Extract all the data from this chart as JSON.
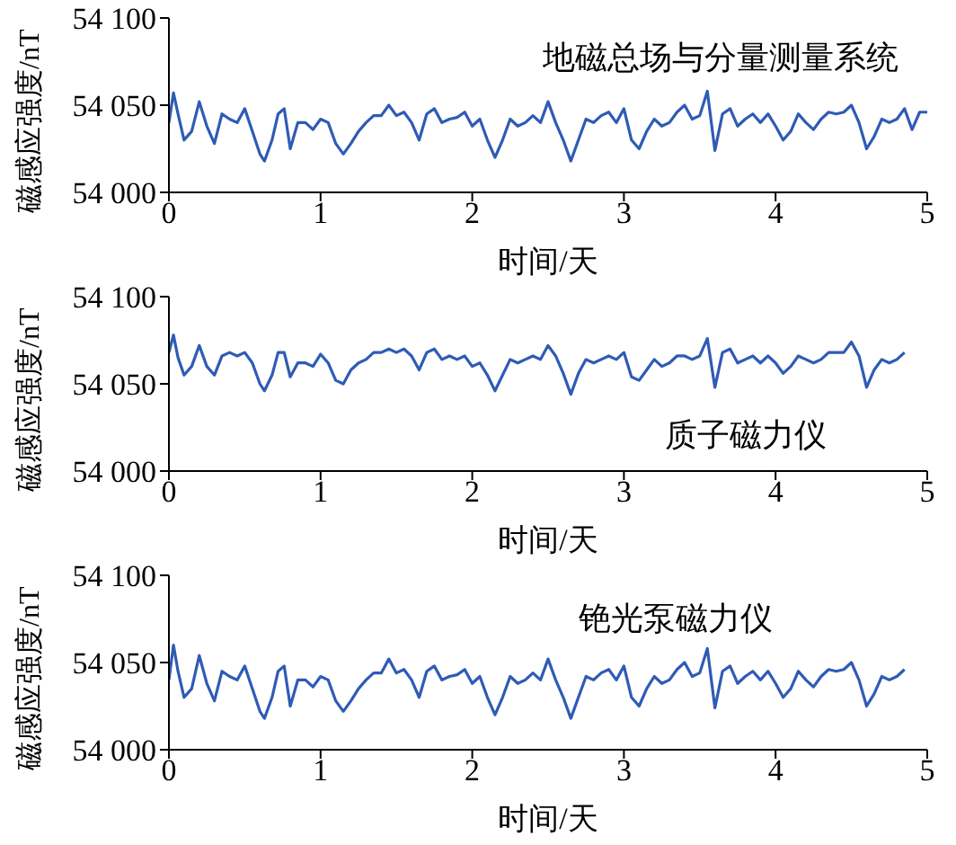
{
  "chart_data": [
    {
      "type": "line",
      "xlabel": "时间/天",
      "ylabel": "磁感应强度/nT",
      "annotations": [
        "地磁总场与分量测量系统"
      ],
      "xlim": [
        0,
        5
      ],
      "xticks": [
        0,
        1,
        2,
        3,
        4,
        5
      ],
      "ylim": [
        54000,
        54100
      ],
      "yticks": [
        {
          "value": 54000,
          "label": "54 000"
        },
        {
          "value": 54050,
          "label": "54 050"
        },
        {
          "value": 54100,
          "label": "54 100"
        }
      ],
      "series": [
        {
          "color": "#2f5bb5",
          "x": [
            0,
            0.03,
            0.06,
            0.1,
            0.15,
            0.2,
            0.25,
            0.3,
            0.35,
            0.4,
            0.45,
            0.5,
            0.55,
            0.6,
            0.63,
            0.68,
            0.72,
            0.76,
            0.8,
            0.85,
            0.9,
            0.95,
            1.0,
            1.05,
            1.1,
            1.15,
            1.2,
            1.25,
            1.3,
            1.35,
            1.4,
            1.45,
            1.5,
            1.55,
            1.6,
            1.65,
            1.7,
            1.75,
            1.8,
            1.85,
            1.9,
            1.95,
            2.0,
            2.05,
            2.1,
            2.15,
            2.2,
            2.25,
            2.3,
            2.35,
            2.4,
            2.45,
            2.5,
            2.55,
            2.6,
            2.65,
            2.7,
            2.75,
            2.8,
            2.85,
            2.9,
            2.95,
            3.0,
            3.05,
            3.1,
            3.15,
            3.2,
            3.25,
            3.3,
            3.35,
            3.4,
            3.45,
            3.5,
            3.55,
            3.6,
            3.65,
            3.7,
            3.75,
            3.8,
            3.85,
            3.9,
            3.95,
            4.0,
            4.05,
            4.1,
            4.15,
            4.2,
            4.25,
            4.3,
            4.35,
            4.4,
            4.45,
            4.5,
            4.55,
            4.6,
            4.65,
            4.7,
            4.75,
            4.8,
            4.85,
            4.9,
            4.95,
            5.0
          ],
          "values": [
            54040,
            54057,
            54045,
            54030,
            54035,
            54052,
            54038,
            54028,
            54045,
            54042,
            54040,
            54048,
            54035,
            54022,
            54018,
            54030,
            54045,
            54048,
            54025,
            54040,
            54040,
            54036,
            54042,
            54040,
            54028,
            54022,
            54028,
            54035,
            54040,
            54044,
            54044,
            54050,
            54044,
            54046,
            54040,
            54030,
            54045,
            54048,
            54040,
            54042,
            54043,
            54046,
            54038,
            54042,
            54030,
            54020,
            54030,
            54042,
            54038,
            54040,
            54044,
            54040,
            54052,
            54040,
            54030,
            54018,
            54030,
            54042,
            54040,
            54044,
            54046,
            54040,
            54048,
            54030,
            54025,
            54035,
            54042,
            54038,
            54040,
            54046,
            54050,
            54042,
            54044,
            54058,
            54024,
            54045,
            54048,
            54038,
            54042,
            54045,
            54040,
            54045,
            54038,
            54030,
            54035,
            54045,
            54040,
            54036,
            54042,
            54046,
            54045,
            54046,
            54050,
            54040,
            54025,
            54032,
            54042,
            54040,
            54042,
            54048,
            54036,
            54046,
            54046
          ]
        }
      ]
    },
    {
      "type": "line",
      "xlabel": "时间/天",
      "ylabel": "磁感应强度/nT",
      "annotations": [
        "质子磁力仪"
      ],
      "xlim": [
        0,
        5
      ],
      "xticks": [
        0,
        1,
        2,
        3,
        4,
        5
      ],
      "ylim": [
        54000,
        54100
      ],
      "yticks": [
        {
          "value": 54000,
          "label": "54 000"
        },
        {
          "value": 54050,
          "label": "54 050"
        },
        {
          "value": 54100,
          "label": "54 100"
        }
      ],
      "series": [
        {
          "color": "#2f5bb5",
          "x": [
            0,
            0.03,
            0.06,
            0.1,
            0.15,
            0.2,
            0.25,
            0.3,
            0.35,
            0.4,
            0.45,
            0.5,
            0.55,
            0.6,
            0.63,
            0.68,
            0.72,
            0.76,
            0.8,
            0.85,
            0.9,
            0.95,
            1.0,
            1.05,
            1.1,
            1.15,
            1.2,
            1.25,
            1.3,
            1.35,
            1.4,
            1.45,
            1.5,
            1.55,
            1.6,
            1.65,
            1.7,
            1.75,
            1.8,
            1.85,
            1.9,
            1.95,
            2.0,
            2.05,
            2.1,
            2.15,
            2.2,
            2.25,
            2.3,
            2.35,
            2.4,
            2.45,
            2.5,
            2.55,
            2.6,
            2.65,
            2.7,
            2.75,
            2.8,
            2.85,
            2.9,
            2.95,
            3.0,
            3.05,
            3.1,
            3.15,
            3.2,
            3.25,
            3.3,
            3.35,
            3.4,
            3.45,
            3.5,
            3.55,
            3.6,
            3.65,
            3.7,
            3.75,
            3.8,
            3.85,
            3.9,
            3.95,
            4.0,
            4.05,
            4.1,
            4.15,
            4.2,
            4.25,
            4.3,
            4.35,
            4.4,
            4.45,
            4.5,
            4.55,
            4.6,
            4.65,
            4.7,
            4.75,
            4.8,
            4.85
          ],
          "values": [
            54068,
            54078,
            54065,
            54055,
            54060,
            54072,
            54060,
            54055,
            54066,
            54068,
            54066,
            54068,
            54062,
            54050,
            54046,
            54055,
            54068,
            54068,
            54054,
            54062,
            54062,
            54060,
            54067,
            54062,
            54052,
            54050,
            54058,
            54062,
            54064,
            54068,
            54068,
            54070,
            54068,
            54070,
            54066,
            54058,
            54068,
            54070,
            54064,
            54066,
            54064,
            54066,
            54060,
            54062,
            54055,
            54046,
            54055,
            54064,
            54062,
            54064,
            54066,
            54064,
            54072,
            54066,
            54056,
            54044,
            54056,
            54064,
            54062,
            54064,
            54066,
            54064,
            54068,
            54054,
            54052,
            54058,
            54064,
            54060,
            54062,
            54066,
            54066,
            54064,
            54066,
            54076,
            54048,
            54068,
            54070,
            54062,
            54064,
            54066,
            54062,
            54066,
            54062,
            54056,
            54060,
            54066,
            54064,
            54062,
            54064,
            54068,
            54068,
            54068,
            54074,
            54066,
            54048,
            54058,
            54064,
            54062,
            54064,
            54068
          ]
        }
      ]
    },
    {
      "type": "line",
      "xlabel": "时间/天",
      "ylabel": "磁感应强度/nT",
      "annotations": [
        "铯光泵磁力仪"
      ],
      "xlim": [
        0,
        5
      ],
      "xticks": [
        0,
        1,
        2,
        3,
        4,
        5
      ],
      "ylim": [
        54000,
        54100
      ],
      "yticks": [
        {
          "value": 54000,
          "label": "54 000"
        },
        {
          "value": 54050,
          "label": "54 050"
        },
        {
          "value": 54100,
          "label": "54 100"
        }
      ],
      "series": [
        {
          "color": "#2f5bb5",
          "x": [
            0,
            0.03,
            0.06,
            0.1,
            0.15,
            0.2,
            0.25,
            0.3,
            0.35,
            0.4,
            0.45,
            0.5,
            0.55,
            0.6,
            0.63,
            0.68,
            0.72,
            0.76,
            0.8,
            0.85,
            0.9,
            0.95,
            1.0,
            1.05,
            1.1,
            1.15,
            1.2,
            1.25,
            1.3,
            1.35,
            1.4,
            1.45,
            1.5,
            1.55,
            1.6,
            1.65,
            1.7,
            1.75,
            1.8,
            1.85,
            1.9,
            1.95,
            2.0,
            2.05,
            2.1,
            2.15,
            2.2,
            2.25,
            2.3,
            2.35,
            2.4,
            2.45,
            2.5,
            2.55,
            2.6,
            2.65,
            2.7,
            2.75,
            2.8,
            2.85,
            2.9,
            2.95,
            3.0,
            3.05,
            3.1,
            3.15,
            3.2,
            3.25,
            3.3,
            3.35,
            3.4,
            3.45,
            3.5,
            3.55,
            3.6,
            3.65,
            3.7,
            3.75,
            3.8,
            3.85,
            3.9,
            3.95,
            4.0,
            4.05,
            4.1,
            4.15,
            4.2,
            4.25,
            4.3,
            4.35,
            4.4,
            4.45,
            4.5,
            4.55,
            4.6,
            4.65,
            4.7,
            4.75,
            4.8,
            4.85
          ],
          "values": [
            54040,
            54060,
            54045,
            54030,
            54035,
            54054,
            54038,
            54028,
            54045,
            54042,
            54040,
            54048,
            54035,
            54022,
            54018,
            54030,
            54045,
            54048,
            54025,
            54040,
            54040,
            54036,
            54042,
            54040,
            54028,
            54022,
            54028,
            54035,
            54040,
            54044,
            54044,
            54052,
            54044,
            54046,
            54040,
            54030,
            54045,
            54048,
            54040,
            54042,
            54043,
            54046,
            54038,
            54042,
            54030,
            54020,
            54030,
            54042,
            54038,
            54040,
            54044,
            54040,
            54052,
            54040,
            54030,
            54018,
            54030,
            54042,
            54040,
            54044,
            54046,
            54040,
            54048,
            54030,
            54025,
            54035,
            54042,
            54038,
            54040,
            54046,
            54050,
            54042,
            54044,
            54058,
            54024,
            54045,
            54048,
            54038,
            54042,
            54045,
            54040,
            54045,
            54038,
            54030,
            54035,
            54045,
            54040,
            54036,
            54042,
            54046,
            54045,
            54046,
            54050,
            54040,
            54025,
            54032,
            54042,
            54040,
            54042,
            54046
          ]
        }
      ]
    }
  ]
}
